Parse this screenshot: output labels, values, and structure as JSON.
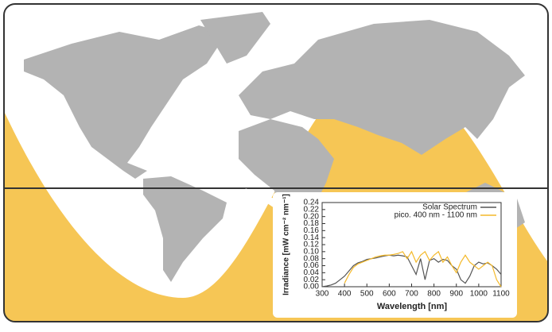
{
  "chart_data": {
    "type": "line",
    "x_label": "Wavelength [nm]",
    "y_label": "Irradiance [mW cm⁻² nm⁻¹]",
    "x": [
      300,
      320,
      340,
      360,
      380,
      400,
      420,
      440,
      460,
      480,
      500,
      520,
      540,
      560,
      580,
      600,
      620,
      640,
      660,
      680,
      700,
      720,
      740,
      760,
      780,
      800,
      820,
      840,
      860,
      880,
      900,
      920,
      940,
      960,
      980,
      1000,
      1020,
      1040,
      1060,
      1080,
      1100
    ],
    "series": [
      {
        "name": "Solar Spectrum",
        "color": "#555555",
        "values": [
          0,
          0.002,
          0.005,
          0.01,
          0.02,
          0.03,
          0.045,
          0.06,
          0.068,
          0.072,
          0.078,
          0.08,
          0.082,
          0.085,
          0.088,
          0.09,
          0.088,
          0.09,
          0.088,
          0.085,
          0.06,
          0.035,
          0.08,
          0.02,
          0.075,
          0.08,
          0.07,
          0.078,
          0.075,
          0.06,
          0.05,
          0.02,
          0.01,
          0.03,
          0.06,
          0.07,
          0.065,
          0.068,
          0.06,
          0.05,
          0.035
        ]
      },
      {
        "name": "pico. 400 nm - 1100 nm",
        "color": "#f4b92a",
        "values": [
          null,
          null,
          null,
          null,
          null,
          0.01,
          0.035,
          0.055,
          0.065,
          0.07,
          0.075,
          0.08,
          0.085,
          0.088,
          0.09,
          0.09,
          0.092,
          0.095,
          0.1,
          0.08,
          0.1,
          0.07,
          0.09,
          0.1,
          0.075,
          0.09,
          0.1,
          0.07,
          0.085,
          0.06,
          0.04,
          0.07,
          0.09,
          0.07,
          0.06,
          0.05,
          0.06,
          0.07,
          0.06,
          0.02,
          0
        ]
      }
    ],
    "xlim": [
      300,
      1100
    ],
    "xticks": [
      300,
      400,
      500,
      600,
      700,
      800,
      900,
      1000,
      1100
    ],
    "ylim": [
      0,
      0.24
    ],
    "yticks": [
      {
        "value": 0,
        "label": "0.00"
      },
      0.02,
      0.04,
      0.06,
      0.08,
      {
        "value": 0.1,
        "label": "0.10"
      },
      0.12,
      0.14,
      0.16,
      0.18,
      {
        "value": 0.2,
        "label": "0.20"
      },
      0.22,
      0.24
    ],
    "legend": "upper right"
  }
}
